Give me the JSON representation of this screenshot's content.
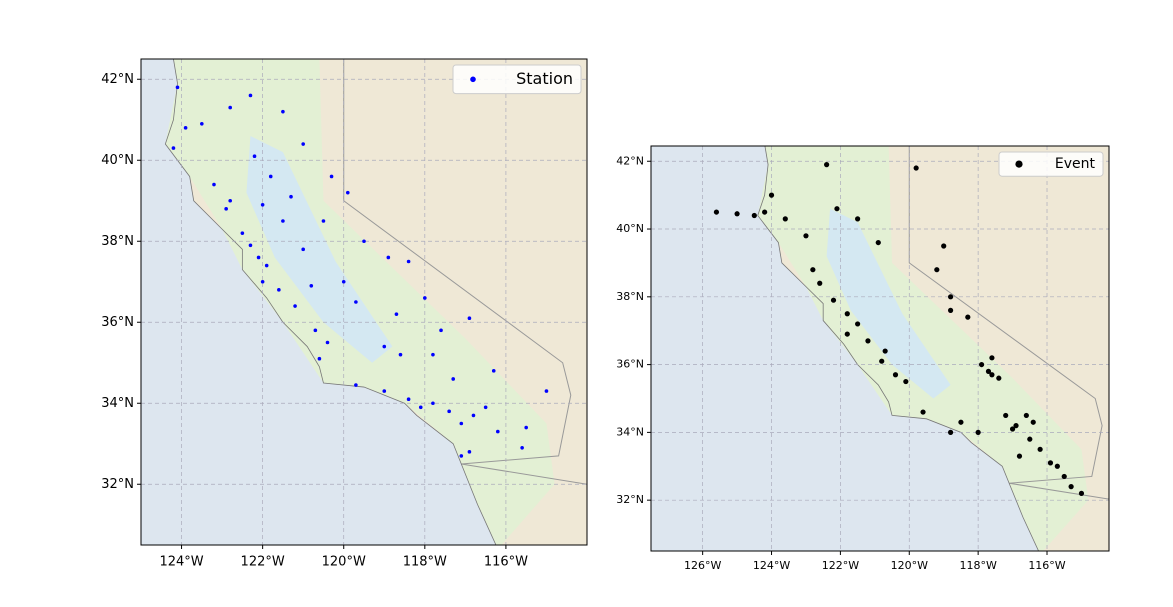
{
  "chart_data": [
    {
      "type": "scatter",
      "legend": "upper right",
      "grid": true,
      "xlim": [
        -125,
        -114
      ],
      "ylim": [
        30.5,
        42.5
      ],
      "xticks": [
        {
          "value": -124,
          "label": "124°W"
        },
        {
          "value": -122,
          "label": "122°W"
        },
        {
          "value": -120,
          "label": "120°W"
        },
        {
          "value": -118,
          "label": "118°W"
        },
        {
          "value": -116,
          "label": "116°W"
        }
      ],
      "yticks": [
        {
          "value": 32,
          "label": "32°N"
        },
        {
          "value": 34,
          "label": "34°N"
        },
        {
          "value": 36,
          "label": "36°N"
        },
        {
          "value": 38,
          "label": "38°N"
        },
        {
          "value": 40,
          "label": "40°N"
        },
        {
          "value": 42,
          "label": "42°N"
        }
      ],
      "x": [
        -124.1,
        -123.9,
        -124.2,
        -123.5,
        -122.8,
        -122.3,
        -121.5,
        -121.0,
        -122.2,
        -121.8,
        -122.8,
        -122.9,
        -122.5,
        -122.3,
        -122.1,
        -121.9,
        -122.0,
        -121.6,
        -121.2,
        -120.7,
        -120.4,
        -120.6,
        -121.0,
        -120.5,
        -119.9,
        -120.3,
        -119.5,
        -118.9,
        -118.4,
        -118.0,
        -117.6,
        -116.9,
        -119.7,
        -119.0,
        -118.6,
        -119.7,
        -119.0,
        -118.4,
        -118.1,
        -117.8,
        -117.4,
        -117.1,
        -116.8,
        -116.5,
        -116.2,
        -115.6,
        -115.5,
        -116.9,
        -117.1,
        -115.0,
        -116.3,
        -117.3,
        -117.8,
        -120.0,
        -120.8,
        -121.5,
        -121.3,
        -122.0,
        -118.7,
        -123.2
      ],
      "series": [
        {
          "name": "Station",
          "color": "#0000ff",
          "values": [
            41.8,
            40.8,
            40.3,
            40.9,
            41.3,
            41.6,
            41.2,
            40.4,
            40.1,
            39.6,
            39.0,
            38.8,
            38.2,
            37.9,
            37.6,
            37.4,
            37.0,
            36.8,
            36.4,
            35.8,
            35.5,
            35.1,
            37.8,
            38.5,
            39.2,
            39.6,
            38.0,
            37.6,
            37.5,
            36.6,
            35.8,
            36.1,
            36.5,
            35.4,
            35.2,
            34.45,
            34.3,
            34.1,
            33.9,
            34.0,
            33.8,
            33.5,
            33.7,
            33.9,
            33.3,
            32.9,
            33.4,
            32.8,
            32.7,
            34.3,
            34.8,
            34.6,
            35.2,
            37.0,
            36.9,
            38.5,
            39.1,
            38.9,
            36.2,
            39.4
          ]
        }
      ]
    },
    {
      "type": "scatter",
      "legend": "upper right",
      "grid": true,
      "xlim": [
        -127.5,
        -114.2
      ],
      "ylim": [
        30.5,
        42.45
      ],
      "xticks": [
        {
          "value": -126,
          "label": "126°W"
        },
        {
          "value": -124,
          "label": "124°W"
        },
        {
          "value": -122,
          "label": "122°W"
        },
        {
          "value": -120,
          "label": "120°W"
        },
        {
          "value": -118,
          "label": "118°W"
        },
        {
          "value": -116,
          "label": "116°W"
        }
      ],
      "yticks": [
        {
          "value": 32,
          "label": "32°N"
        },
        {
          "value": 34,
          "label": "34°N"
        },
        {
          "value": 36,
          "label": "36°N"
        },
        {
          "value": 38,
          "label": "38°N"
        },
        {
          "value": 40,
          "label": "40°N"
        },
        {
          "value": 42,
          "label": "42°N"
        }
      ],
      "x": [
        -125.6,
        -125.0,
        -124.5,
        -124.2,
        -123.6,
        -122.8,
        -122.6,
        -122.2,
        -121.8,
        -121.5,
        -121.2,
        -120.8,
        -120.4,
        -120.1,
        -119.2,
        -118.8,
        -118.8,
        -118.3,
        -117.6,
        -117.6,
        -117.4,
        -116.6,
        -116.4,
        -117.0,
        -116.5,
        -116.2,
        -115.9,
        -115.5,
        -115.3,
        -115.0,
        -118.5,
        -118.8,
        -119.6,
        -120.9,
        -121.5,
        -122.1,
        -124.0,
        -123.0,
        -122.4,
        -119.8,
        -119.0,
        -117.9,
        -116.8,
        -117.2,
        -115.7,
        -118.0,
        -120.7,
        -121.8,
        -117.7,
        -116.9
      ],
      "series": [
        {
          "name": "Event",
          "color": "#000000",
          "values": [
            40.5,
            40.45,
            40.4,
            40.5,
            40.3,
            38.8,
            38.4,
            37.9,
            37.5,
            37.2,
            36.7,
            36.1,
            35.7,
            35.5,
            38.8,
            38.0,
            37.6,
            37.4,
            36.2,
            35.7,
            35.6,
            34.5,
            34.3,
            34.1,
            33.8,
            33.5,
            33.1,
            32.7,
            32.4,
            32.2,
            34.3,
            34.0,
            34.6,
            39.6,
            40.3,
            40.6,
            41.0,
            39.8,
            41.9,
            41.8,
            39.5,
            36.0,
            33.3,
            34.5,
            33.0,
            34.0,
            36.4,
            36.9,
            35.8,
            34.2
          ]
        }
      ]
    }
  ]
}
